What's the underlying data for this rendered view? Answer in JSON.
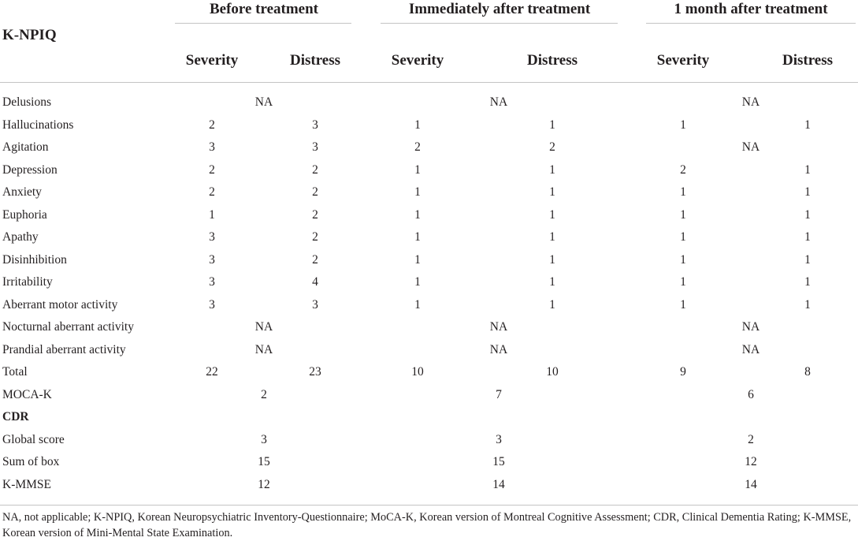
{
  "table": {
    "stub_header": "K-NPIQ",
    "groups": [
      {
        "label": "Before treatment",
        "columns": [
          "Severity",
          "Distress"
        ]
      },
      {
        "label": "Immediately after treatment",
        "columns": [
          "Severity",
          "Distress"
        ]
      },
      {
        "label": "1 month after treatment",
        "columns": [
          "Severity",
          "Distress"
        ]
      }
    ],
    "rows": [
      {
        "label": "Delusions",
        "cells": [
          "NA",
          "NA",
          "NA"
        ]
      },
      {
        "label": "Hallucinations",
        "cells": [
          [
            2,
            3
          ],
          [
            1,
            1
          ],
          [
            1,
            1
          ]
        ]
      },
      {
        "label": "Agitation",
        "cells": [
          [
            3,
            3
          ],
          [
            2,
            2
          ],
          "NA"
        ]
      },
      {
        "label": "Depression",
        "cells": [
          [
            2,
            2
          ],
          [
            1,
            1
          ],
          [
            2,
            1
          ]
        ]
      },
      {
        "label": "Anxiety",
        "cells": [
          [
            2,
            2
          ],
          [
            1,
            1
          ],
          [
            1,
            1
          ]
        ]
      },
      {
        "label": "Euphoria",
        "cells": [
          [
            1,
            2
          ],
          [
            1,
            1
          ],
          [
            1,
            1
          ]
        ]
      },
      {
        "label": "Apathy",
        "cells": [
          [
            3,
            2
          ],
          [
            1,
            1
          ],
          [
            1,
            1
          ]
        ]
      },
      {
        "label": "Disinhibition",
        "cells": [
          [
            3,
            2
          ],
          [
            1,
            1
          ],
          [
            1,
            1
          ]
        ]
      },
      {
        "label": "Irritability",
        "cells": [
          [
            3,
            4
          ],
          [
            1,
            1
          ],
          [
            1,
            1
          ]
        ]
      },
      {
        "label": "Aberrant motor activity",
        "cells": [
          [
            3,
            3
          ],
          [
            1,
            1
          ],
          [
            1,
            1
          ]
        ]
      },
      {
        "label": "Nocturnal aberrant activity",
        "cells": [
          "NA",
          "NA",
          "NA"
        ]
      },
      {
        "label": "Prandial aberrant activity",
        "cells": [
          "NA",
          "NA",
          "NA"
        ]
      },
      {
        "label": "Total",
        "cells": [
          [
            22,
            23
          ],
          [
            10,
            10
          ],
          [
            9,
            8
          ]
        ]
      },
      {
        "label": "MOCA-K",
        "cells": [
          2,
          7,
          6
        ]
      },
      {
        "label": "CDR",
        "section": true,
        "cells": []
      },
      {
        "label": "Global score",
        "cells": [
          3,
          3,
          2
        ]
      },
      {
        "label": "Sum of box",
        "cells": [
          15,
          15,
          12
        ]
      },
      {
        "label": "K-MMSE",
        "cells": [
          12,
          14,
          14
        ]
      }
    ]
  },
  "footnote": "NA, not applicable; K-NPIQ, Korean Neuropsychiatric Inventory-Questionnaire; MoCA-K, Korean version of Montreal Cognitive Assessment; CDR, Clinical Dementia Rating; K-MMSE, Korean version of Mini-Mental State Examination."
}
